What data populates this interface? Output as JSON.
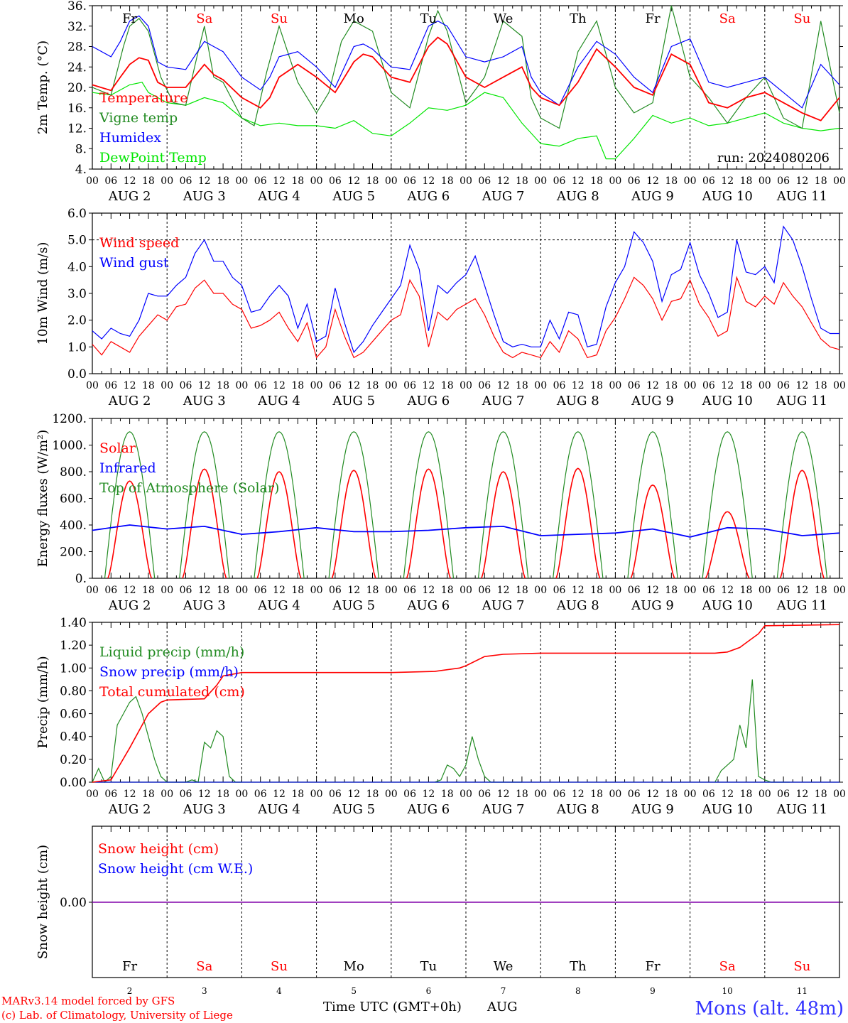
{
  "colors": {
    "red": "#ff0000",
    "green": "#228b22",
    "blue": "#0000ff",
    "lightgreen": "#00e600",
    "purple": "#8000aa",
    "weekend": "#ff0000",
    "text": "#000000",
    "location": "#3333ff"
  },
  "days": [
    {
      "abbr": "Fr",
      "date": "2",
      "weekend": false
    },
    {
      "abbr": "Sa",
      "date": "3",
      "weekend": true
    },
    {
      "abbr": "Su",
      "date": "4",
      "weekend": true
    },
    {
      "abbr": "Mo",
      "date": "5",
      "weekend": false
    },
    {
      "abbr": "Tu",
      "date": "6",
      "weekend": false
    },
    {
      "abbr": "We",
      "date": "7",
      "weekend": false
    },
    {
      "abbr": "Th",
      "date": "8",
      "weekend": false
    },
    {
      "abbr": "Fr",
      "date": "9",
      "weekend": false
    },
    {
      "abbr": "Sa",
      "date": "10",
      "weekend": true
    },
    {
      "abbr": "Su",
      "date": "11",
      "weekend": true
    }
  ],
  "hour_labels": [
    "00",
    "06",
    "12",
    "18"
  ],
  "month": "AUG",
  "footer": {
    "model": "MARv3.14 model forced by GFS",
    "lab": "(c) Lab. of Climatology, University of Liege",
    "xlabel": "Time UTC (GMT+0h)",
    "month": "AUG",
    "location": "Mons (alt. 48m)"
  },
  "chart_data": [
    {
      "type": "line",
      "ylabel": "2m Temp. (°C)",
      "ylim": [
        4,
        36
      ],
      "yticks": [
        "4.",
        "8.",
        "12.",
        "16.",
        "20.",
        "24.",
        "28.",
        "32.",
        "36."
      ],
      "annotation": "run: 2024080206",
      "x_unit": "hours since Aug 2 00 UTC",
      "series": [
        {
          "name": "Temperature",
          "color": "red",
          "x": [
            0,
            6,
            9,
            12,
            15,
            18,
            21,
            24,
            30,
            36,
            39,
            42,
            48,
            54,
            57,
            60,
            66,
            72,
            78,
            84,
            87,
            90,
            96,
            102,
            108,
            111,
            114,
            120,
            126,
            132,
            138,
            141,
            144,
            150,
            156,
            162,
            168,
            174,
            180,
            186,
            192,
            198,
            204,
            210,
            216,
            222,
            228,
            234,
            240
          ],
          "y": [
            20.5,
            19.4,
            22,
            24.5,
            25.8,
            25.3,
            21,
            20,
            20,
            24.5,
            22.5,
            21.5,
            18,
            16,
            18,
            22,
            24.5,
            22,
            19,
            25,
            26.5,
            26,
            22,
            21,
            28,
            29.8,
            28.5,
            22,
            20,
            22,
            24,
            20,
            18,
            16.5,
            21,
            27.5,
            24,
            20,
            18.5,
            26.5,
            24.5,
            17,
            16,
            18,
            19,
            17,
            15,
            13.5,
            18
          ]
        },
        {
          "name": "Vigne temp",
          "color": "green",
          "x": [
            0,
            6,
            10,
            12,
            15,
            18,
            22,
            26,
            30,
            34,
            36,
            39,
            42,
            48,
            52,
            56,
            60,
            66,
            72,
            76,
            80,
            84,
            90,
            96,
            102,
            108,
            111,
            114,
            120,
            126,
            132,
            138,
            141,
            144,
            150,
            156,
            162,
            168,
            174,
            180,
            186,
            192,
            198,
            204,
            210,
            216,
            222,
            228,
            234,
            240
          ],
          "y": [
            20,
            18.5,
            28,
            32,
            33.5,
            31,
            22,
            17,
            16.5,
            27,
            32,
            22,
            21,
            14,
            12.5,
            23,
            32,
            21,
            15,
            19,
            29,
            33,
            31,
            19,
            16,
            30,
            35,
            31,
            17,
            22,
            33,
            30,
            18,
            14,
            12,
            27,
            33,
            20,
            15,
            17,
            36,
            22,
            18,
            13,
            18,
            22,
            14,
            12,
            33,
            15
          ]
        },
        {
          "name": "Humidex",
          "color": "blue",
          "x": [
            0,
            6,
            9,
            12,
            15,
            18,
            21,
            24,
            30,
            36,
            39,
            42,
            48,
            54,
            57,
            60,
            66,
            72,
            78,
            84,
            87,
            90,
            96,
            102,
            108,
            111,
            114,
            120,
            126,
            132,
            138,
            141,
            144,
            150,
            156,
            162,
            168,
            174,
            180,
            186,
            192,
            198,
            204,
            210,
            216,
            222,
            228,
            234,
            240
          ],
          "y": [
            28,
            26,
            29,
            33,
            34,
            32,
            25,
            24,
            23.5,
            29,
            28,
            27,
            22,
            19.5,
            22,
            26,
            27,
            24,
            20,
            28,
            28.5,
            27.5,
            24,
            23.5,
            32,
            33,
            32,
            26,
            25,
            26,
            28,
            22,
            19,
            16.5,
            24,
            29,
            26.5,
            22,
            19,
            28,
            29.5,
            21,
            20,
            21,
            22,
            19,
            16,
            24.5,
            20.5
          ]
        },
        {
          "name": "DewPoint Temp",
          "color": "lightgreen",
          "x": [
            0,
            6,
            12,
            16,
            18,
            24,
            30,
            36,
            42,
            48,
            54,
            60,
            66,
            72,
            78,
            84,
            90,
            96,
            102,
            108,
            114,
            120,
            126,
            132,
            138,
            144,
            150,
            156,
            162,
            165,
            168,
            174,
            180,
            186,
            192,
            198,
            204,
            210,
            216,
            222,
            228,
            234,
            240
          ],
          "y": [
            19,
            18.5,
            20.5,
            21,
            19,
            17,
            16.5,
            18,
            17,
            14,
            12.5,
            13,
            12.5,
            12.5,
            12,
            13.5,
            11,
            10.5,
            13,
            16,
            15.5,
            16.5,
            19,
            18,
            13,
            9,
            8.5,
            10,
            10.5,
            6,
            6,
            10,
            14.5,
            13,
            14,
            12.5,
            13,
            14,
            15,
            13,
            12,
            11.5,
            12
          ]
        }
      ]
    },
    {
      "type": "line",
      "ylabel": "10m Wind (m/s)",
      "ylim": [
        0,
        6
      ],
      "yticks": [
        "0.0",
        "1.0",
        "2.0",
        "3.0",
        "4.0",
        "5.0",
        "6.0"
      ],
      "dashed_y": 5.0,
      "x_unit": "hours since Aug 2 00 UTC",
      "series": [
        {
          "name": "Wind speed",
          "color": "red",
          "x": [
            0,
            3,
            6,
            9,
            12,
            15,
            18,
            21,
            24,
            27,
            30,
            33,
            36,
            39,
            42,
            45,
            48,
            51,
            54,
            57,
            60,
            63,
            66,
            69,
            72,
            75,
            78,
            81,
            84,
            87,
            90,
            93,
            96,
            99,
            102,
            105,
            108,
            111,
            114,
            117,
            120,
            123,
            126,
            129,
            132,
            135,
            138,
            141,
            144,
            147,
            150,
            153,
            156,
            159,
            162,
            165,
            168,
            171,
            174,
            177,
            180,
            183,
            186,
            189,
            192,
            195,
            198,
            201,
            204,
            207,
            210,
            213,
            216,
            219,
            222,
            225,
            228,
            231,
            234,
            237,
            240
          ],
          "y": [
            1.1,
            0.7,
            1.2,
            1.0,
            0.8,
            1.4,
            1.8,
            2.2,
            2.0,
            2.5,
            2.6,
            3.2,
            3.5,
            3.0,
            3.0,
            2.6,
            2.4,
            1.7,
            1.8,
            2.0,
            2.3,
            1.7,
            1.2,
            1.9,
            0.6,
            1.0,
            2.4,
            1.4,
            0.6,
            0.8,
            1.2,
            1.6,
            2.0,
            2.2,
            3.5,
            2.9,
            1.0,
            2.3,
            2.0,
            2.4,
            2.6,
            2.8,
            2.2,
            1.4,
            0.8,
            0.6,
            0.8,
            0.7,
            0.6,
            1.2,
            0.8,
            1.6,
            1.3,
            0.6,
            0.7,
            1.6,
            2.1,
            2.8,
            3.6,
            3.3,
            2.8,
            2.0,
            2.7,
            2.8,
            3.5,
            2.6,
            2.1,
            1.4,
            1.6,
            3.6,
            2.7,
            2.5,
            2.9,
            2.6,
            3.4,
            2.9,
            2.5,
            1.9,
            1.3,
            1.0,
            0.9
          ]
        },
        {
          "name": "Wind gust",
          "color": "blue",
          "x": [
            0,
            3,
            6,
            9,
            12,
            15,
            18,
            21,
            24,
            27,
            30,
            33,
            36,
            39,
            42,
            45,
            48,
            51,
            54,
            57,
            60,
            63,
            66,
            69,
            72,
            75,
            78,
            81,
            84,
            87,
            90,
            93,
            96,
            99,
            102,
            105,
            108,
            111,
            114,
            117,
            120,
            123,
            126,
            129,
            132,
            135,
            138,
            141,
            144,
            147,
            150,
            153,
            156,
            159,
            162,
            165,
            168,
            171,
            174,
            177,
            180,
            183,
            186,
            189,
            192,
            195,
            198,
            201,
            204,
            207,
            210,
            213,
            216,
            219,
            222,
            225,
            228,
            231,
            234,
            237,
            240
          ],
          "y": [
            1.6,
            1.3,
            1.7,
            1.5,
            1.4,
            2.0,
            3.0,
            2.9,
            2.9,
            3.3,
            3.6,
            4.5,
            5.0,
            4.2,
            4.2,
            3.6,
            3.3,
            2.3,
            2.4,
            2.9,
            3.3,
            2.9,
            1.7,
            2.6,
            1.2,
            1.4,
            3.2,
            1.9,
            0.8,
            1.2,
            1.8,
            2.3,
            2.8,
            3.3,
            4.8,
            3.9,
            1.6,
            3.3,
            3.0,
            3.4,
            3.7,
            4.4,
            3.3,
            2.2,
            1.2,
            1.0,
            1.1,
            1.0,
            1.0,
            2.0,
            1.3,
            2.3,
            2.2,
            1.0,
            1.1,
            2.5,
            3.4,
            4.0,
            5.3,
            4.9,
            4.2,
            2.7,
            3.7,
            3.9,
            4.9,
            3.7,
            3.0,
            2.1,
            2.3,
            5.0,
            3.8,
            3.7,
            4.0,
            3.4,
            5.5,
            5.0,
            4.0,
            2.8,
            1.7,
            1.5,
            1.5
          ]
        }
      ]
    },
    {
      "type": "line",
      "ylabel": "Energy fluxes (W/m²)",
      "ylim": [
        0,
        1200
      ],
      "yticks": [
        "0.",
        "200.",
        "400.",
        "600.",
        "800.",
        "1000.",
        "1200."
      ],
      "x_unit": "hours since Aug 2 00 UTC",
      "series": [
        {
          "name": "Solar",
          "color": "red",
          "peak": [
            730,
            820,
            800,
            810,
            820,
            800,
            825,
            700,
            500,
            810
          ]
        },
        {
          "name": "Infrared",
          "color": "blue",
          "x": [
            0,
            12,
            24,
            36,
            48,
            60,
            72,
            84,
            96,
            108,
            120,
            132,
            144,
            156,
            168,
            180,
            192,
            204,
            216,
            228,
            240
          ],
          "y": [
            360,
            400,
            370,
            390,
            330,
            350,
            380,
            350,
            350,
            360,
            380,
            390,
            320,
            330,
            340,
            370,
            310,
            380,
            370,
            320,
            340
          ]
        },
        {
          "name": "Top of Atmosphere (Solar)",
          "color": "green",
          "peak": 1100
        }
      ]
    },
    {
      "type": "line",
      "ylabel": "Precip (mm/h)",
      "ylim": [
        0,
        1.4
      ],
      "yticks": [
        "0.00",
        "0.20",
        "0.40",
        "0.60",
        "0.80",
        "1.00",
        "1.20",
        "1.40"
      ],
      "x_unit": "hours since Aug 2 00 UTC",
      "series": [
        {
          "name": "Liquid precip (mm/h)",
          "color": "green",
          "x": [
            0,
            2,
            4,
            6,
            8,
            10,
            12,
            14,
            16,
            18,
            20,
            22,
            24,
            26,
            28,
            30,
            32,
            34,
            36,
            38,
            40,
            42,
            44,
            46,
            48,
            110,
            112,
            114,
            116,
            118,
            120,
            122,
            124,
            126,
            128,
            130,
            132,
            134,
            136,
            138,
            200,
            202,
            204,
            206,
            208,
            210,
            212,
            214,
            216,
            218,
            220,
            222,
            224
          ],
          "y": [
            0,
            0.12,
            0,
            0.05,
            0.5,
            0.6,
            0.7,
            0.75,
            0.6,
            0.4,
            0.2,
            0.05,
            0,
            0,
            0,
            0,
            0.02,
            0,
            0.35,
            0.3,
            0.45,
            0.4,
            0.05,
            0,
            0,
            0,
            0.02,
            0.15,
            0.12,
            0.05,
            0.15,
            0.4,
            0.2,
            0.05,
            0,
            0,
            0,
            0,
            0,
            0,
            0,
            0.1,
            0.15,
            0.2,
            0.5,
            0.3,
            0.9,
            0.05,
            0.02,
            0,
            0,
            0,
            0
          ]
        },
        {
          "name": "Snow precip (mm/h)",
          "color": "blue"
        },
        {
          "name": "Total cumulated (cm)",
          "color": "red",
          "x": [
            0,
            6,
            12,
            18,
            22,
            24,
            36,
            40,
            42,
            48,
            60,
            96,
            110,
            118,
            120,
            126,
            132,
            144,
            168,
            200,
            204,
            208,
            210,
            214,
            216,
            240
          ],
          "y": [
            0,
            0.02,
            0.3,
            0.6,
            0.7,
            0.72,
            0.73,
            0.85,
            0.93,
            0.96,
            0.96,
            0.96,
            0.97,
            1.0,
            1.02,
            1.1,
            1.12,
            1.13,
            1.13,
            1.13,
            1.14,
            1.18,
            1.22,
            1.3,
            1.37,
            1.38
          ]
        }
      ]
    },
    {
      "type": "line",
      "ylabel": "Snow height (cm)",
      "ytick": "0.00",
      "x_unit": "hours since Aug 2 00 UTC",
      "series": [
        {
          "name": "Snow height (cm)",
          "color": "red"
        },
        {
          "name": "Snow height (cm W.E.)",
          "color": "blue"
        }
      ]
    }
  ]
}
